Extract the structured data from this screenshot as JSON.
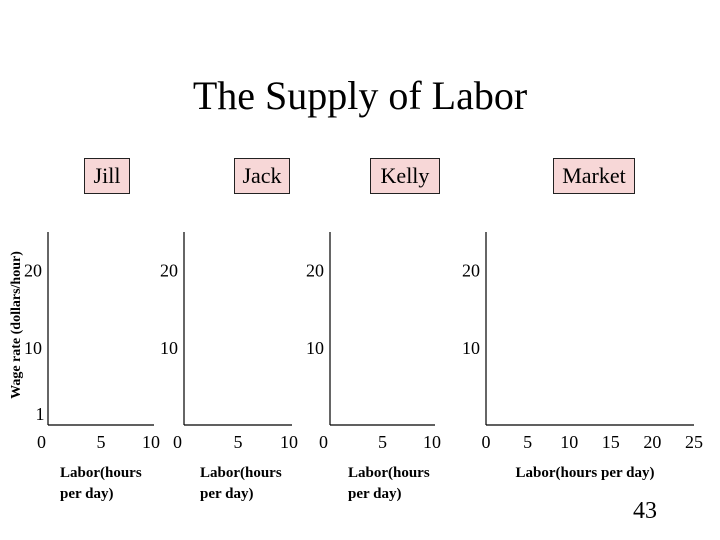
{
  "slide": {
    "title": "The Supply of Labor",
    "y_axis_title": "Wage rate (dollars/hour)",
    "stray_label": "1",
    "slide_number": "43"
  },
  "chart_data": [
    {
      "type": "line",
      "panel_label": "Jill",
      "xlabel": [
        "Labor(hours",
        "per day)"
      ],
      "ylabel": "Wage rate (dollars/hour)",
      "x_ticks": [
        "0",
        "5",
        "10"
      ],
      "y_ticks": [
        "10",
        "20"
      ],
      "xlim": [
        0,
        10
      ],
      "ylim": [
        0,
        25
      ],
      "series": []
    },
    {
      "type": "line",
      "panel_label": "Jack",
      "xlabel": [
        "Labor(hours",
        "per day)"
      ],
      "ylabel": "",
      "x_ticks": [
        "0",
        "5",
        "10"
      ],
      "y_ticks": [
        "10",
        "20"
      ],
      "xlim": [
        0,
        10
      ],
      "ylim": [
        0,
        25
      ],
      "series": []
    },
    {
      "type": "line",
      "panel_label": "Kelly",
      "xlabel": [
        "Labor(hours",
        "per day)"
      ],
      "ylabel": "",
      "x_ticks": [
        "0",
        "5",
        "10"
      ],
      "y_ticks": [
        "10",
        "20"
      ],
      "xlim": [
        0,
        10
      ],
      "ylim": [
        0,
        25
      ],
      "series": []
    },
    {
      "type": "line",
      "panel_label": "Market",
      "xlabel": [
        "Labor(hours per day)"
      ],
      "ylabel": "",
      "x_ticks": [
        "0",
        "5",
        "10",
        "15",
        "20",
        "25"
      ],
      "y_ticks": [
        "10",
        "20"
      ],
      "xlim": [
        0,
        25
      ],
      "ylim": [
        0,
        25
      ],
      "series": []
    }
  ]
}
